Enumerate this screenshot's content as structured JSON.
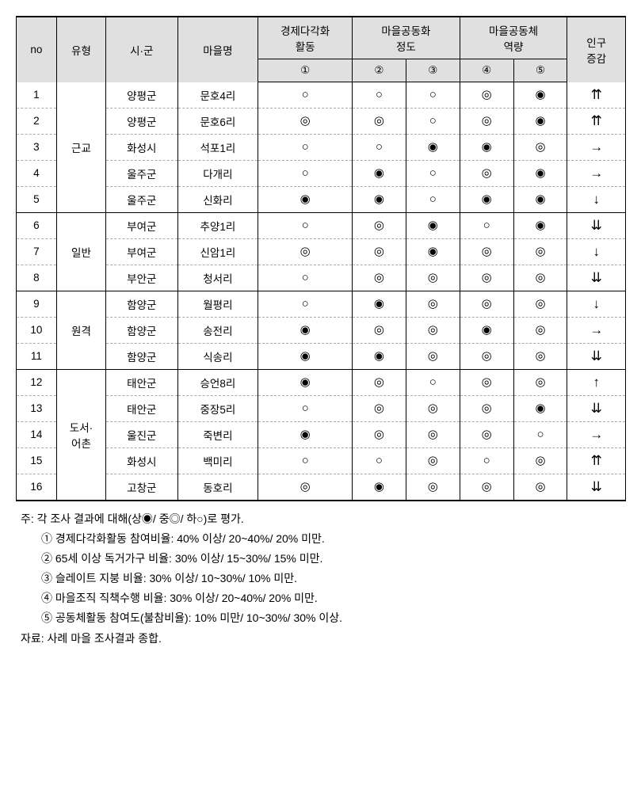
{
  "symbols": {
    "high": "◉",
    "mid": "◎",
    "low": "○"
  },
  "arrows": {
    "uu": "⇈",
    "u": "↑",
    "eq": "→",
    "d": "↓",
    "dd": "⇊"
  },
  "header": {
    "no": "no",
    "type": "유형",
    "gun": "시·군",
    "village": "마을명",
    "eco": "경제다각화\n활동",
    "comm": "마을공동화\n정도",
    "cap": "마을공동체\n역량",
    "pop": "인구\n증감",
    "c1": "①",
    "c2": "②",
    "c3": "③",
    "c4": "④",
    "c5": "⑤"
  },
  "groups": [
    {
      "type": "근교",
      "rows": [
        {
          "no": 1,
          "gun": "양평군",
          "vil": "문호4리",
          "c1": "low",
          "c2": "low",
          "c3": "low",
          "c4": "mid",
          "c5": "high",
          "pop": "uu"
        },
        {
          "no": 2,
          "gun": "양평군",
          "vil": "문호6리",
          "c1": "mid",
          "c2": "mid",
          "c3": "low",
          "c4": "mid",
          "c5": "high",
          "pop": "uu"
        },
        {
          "no": 3,
          "gun": "화성시",
          "vil": "석포1리",
          "c1": "low",
          "c2": "low",
          "c3": "high",
          "c4": "high",
          "c5": "mid",
          "pop": "eq"
        },
        {
          "no": 4,
          "gun": "울주군",
          "vil": "다개리",
          "c1": "low",
          "c2": "high",
          "c3": "low",
          "c4": "mid",
          "c5": "high",
          "pop": "eq"
        },
        {
          "no": 5,
          "gun": "울주군",
          "vil": "신화리",
          "c1": "high",
          "c2": "high",
          "c3": "low",
          "c4": "high",
          "c5": "high",
          "pop": "d"
        }
      ]
    },
    {
      "type": "일반",
      "rows": [
        {
          "no": 6,
          "gun": "부여군",
          "vil": "추양1리",
          "c1": "low",
          "c2": "mid",
          "c3": "high",
          "c4": "low",
          "c5": "high",
          "pop": "dd"
        },
        {
          "no": 7,
          "gun": "부여군",
          "vil": "신암1리",
          "c1": "mid",
          "c2": "mid",
          "c3": "high",
          "c4": "mid",
          "c5": "mid",
          "pop": "d"
        },
        {
          "no": 8,
          "gun": "부안군",
          "vil": "청서리",
          "c1": "low",
          "c2": "mid",
          "c3": "mid",
          "c4": "mid",
          "c5": "mid",
          "pop": "dd"
        }
      ]
    },
    {
      "type": "원격",
      "rows": [
        {
          "no": 9,
          "gun": "함양군",
          "vil": "월평리",
          "c1": "low",
          "c2": "high",
          "c3": "mid",
          "c4": "mid",
          "c5": "mid",
          "pop": "d"
        },
        {
          "no": 10,
          "gun": "함양군",
          "vil": "송전리",
          "c1": "high",
          "c2": "mid",
          "c3": "mid",
          "c4": "high",
          "c5": "mid",
          "pop": "eq"
        },
        {
          "no": 11,
          "gun": "함양군",
          "vil": "식송리",
          "c1": "high",
          "c2": "high",
          "c3": "mid",
          "c4": "mid",
          "c5": "mid",
          "pop": "dd"
        }
      ]
    },
    {
      "type": "도서·\n어촌",
      "rows": [
        {
          "no": 12,
          "gun": "태안군",
          "vil": "승언8리",
          "c1": "high",
          "c2": "mid",
          "c3": "low",
          "c4": "mid",
          "c5": "mid",
          "pop": "u"
        },
        {
          "no": 13,
          "gun": "태안군",
          "vil": "중장5리",
          "c1": "low",
          "c2": "mid",
          "c3": "mid",
          "c4": "mid",
          "c5": "high",
          "pop": "dd"
        },
        {
          "no": 14,
          "gun": "울진군",
          "vil": "죽변리",
          "c1": "high",
          "c2": "mid",
          "c3": "mid",
          "c4": "mid",
          "c5": "low",
          "pop": "eq"
        },
        {
          "no": 15,
          "gun": "화성시",
          "vil": "백미리",
          "c1": "low",
          "c2": "low",
          "c3": "mid",
          "c4": "low",
          "c5": "mid",
          "pop": "uu"
        },
        {
          "no": 16,
          "gun": "고창군",
          "vil": "동호리",
          "c1": "mid",
          "c2": "high",
          "c3": "mid",
          "c4": "mid",
          "c5": "mid",
          "pop": "dd"
        }
      ]
    }
  ],
  "notes": {
    "n0": "주: 각 조사 결과에 대해(상◉/ 중◎/ 하○)로 평가.",
    "n1": "① 경제다각화활동 참여비율: 40% 이상/ 20~40%/ 20% 미만.",
    "n2": "② 65세 이상 독거가구 비율: 30% 이상/ 15~30%/ 15% 미만.",
    "n3": "③ 슬레이트 지붕 비율: 30% 이상/ 10~30%/ 10% 미만.",
    "n4": "④ 마을조직 직책수행 비율: 30% 이상/ 20~40%/ 20% 미만.",
    "n5": "⑤ 공동체활동 참여도(불참비율): 10% 미만/ 10~30%/ 30% 이상.",
    "src": "자료: 사례 마을 조사결과 종합."
  }
}
